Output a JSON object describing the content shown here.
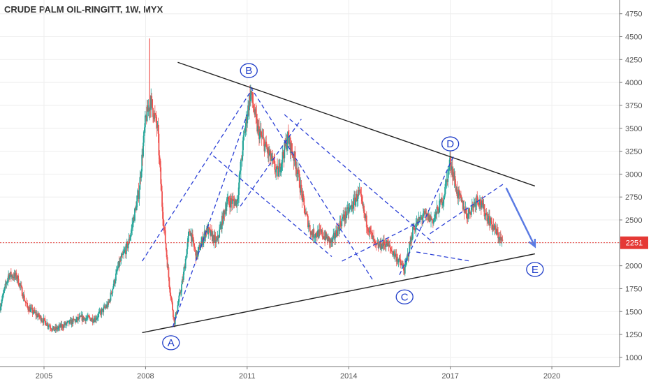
{
  "chart_data": {
    "type": "candlestick",
    "title": "CRUDE PALM OIL-RINGITT, 1W, MYX",
    "xlabel": "",
    "ylabel": "",
    "x_range": [
      2003.7,
      2022.0
    ],
    "ylim": [
      900,
      4900
    ],
    "x_ticks": [
      {
        "value": 2005,
        "label": "2005"
      },
      {
        "value": 2008,
        "label": "2008"
      },
      {
        "value": 2011,
        "label": "2011"
      },
      {
        "value": 2014,
        "label": "2014"
      },
      {
        "value": 2017,
        "label": "2017"
      },
      {
        "value": 2020,
        "label": "2020"
      }
    ],
    "y_ticks": [
      {
        "value": 1000,
        "label": "1000"
      },
      {
        "value": 1250,
        "label": "1250"
      },
      {
        "value": 1500,
        "label": "1500"
      },
      {
        "value": 1750,
        "label": "1750"
      },
      {
        "value": 2000,
        "label": "2000"
      },
      {
        "value": 2250,
        "label": "2250"
      },
      {
        "value": 2500,
        "label": "2500"
      },
      {
        "value": 2750,
        "label": "2750"
      },
      {
        "value": 3000,
        "label": "3000"
      },
      {
        "value": 3250,
        "label": "3250"
      },
      {
        "value": 3500,
        "label": "3500"
      },
      {
        "value": 3750,
        "label": "3750"
      },
      {
        "value": 4000,
        "label": "4000"
      },
      {
        "value": 4250,
        "label": "4250"
      },
      {
        "value": 4500,
        "label": "4500"
      },
      {
        "value": 4750,
        "label": "4750"
      }
    ],
    "grid": true,
    "last_price": {
      "value": 2251,
      "label": "2251"
    },
    "price_path": [
      [
        2003.7,
        1550
      ],
      [
        2003.95,
        1900
      ],
      [
        2004.2,
        1880
      ],
      [
        2004.5,
        1550
      ],
      [
        2004.9,
        1430
      ],
      [
        2005.3,
        1300
      ],
      [
        2005.7,
        1370
      ],
      [
        2006.1,
        1430
      ],
      [
        2006.5,
        1420
      ],
      [
        2006.9,
        1580
      ],
      [
        2007.2,
        2000
      ],
      [
        2007.5,
        2250
      ],
      [
        2007.8,
        2800
      ],
      [
        2008.0,
        3600
      ],
      [
        2008.15,
        3800
      ],
      [
        2008.35,
        3500
      ],
      [
        2008.5,
        2600
      ],
      [
        2008.7,
        1800
      ],
      [
        2008.85,
        1380
      ],
      [
        2009.1,
        1850
      ],
      [
        2009.3,
        2400
      ],
      [
        2009.5,
        2100
      ],
      [
        2009.8,
        2400
      ],
      [
        2010.1,
        2250
      ],
      [
        2010.4,
        2700
      ],
      [
        2010.7,
        2700
      ],
      [
        2010.9,
        3400
      ],
      [
        2011.1,
        3900
      ],
      [
        2011.3,
        3500
      ],
      [
        2011.6,
        3250
      ],
      [
        2011.9,
        3000
      ],
      [
        2012.2,
        3400
      ],
      [
        2012.45,
        3100
      ],
      [
        2012.7,
        2600
      ],
      [
        2012.9,
        2350
      ],
      [
        2013.2,
        2350
      ],
      [
        2013.5,
        2250
      ],
      [
        2013.8,
        2500
      ],
      [
        2014.1,
        2650
      ],
      [
        2014.3,
        2800
      ],
      [
        2014.5,
        2500
      ],
      [
        2014.8,
        2200
      ],
      [
        2015.1,
        2250
      ],
      [
        2015.4,
        2100
      ],
      [
        2015.65,
        1950
      ],
      [
        2015.9,
        2400
      ],
      [
        2016.2,
        2550
      ],
      [
        2016.5,
        2500
      ],
      [
        2016.8,
        2750
      ],
      [
        2017.0,
        3150
      ],
      [
        2017.2,
        2800
      ],
      [
        2017.5,
        2550
      ],
      [
        2017.8,
        2750
      ],
      [
        2018.0,
        2600
      ],
      [
        2018.3,
        2400
      ],
      [
        2018.55,
        2251
      ]
    ],
    "annotations": {
      "wave_labels": [
        {
          "label": "A",
          "x": 2008.75,
          "y": 1160
        },
        {
          "label": "B",
          "x": 2011.05,
          "y": 4130
        },
        {
          "label": "C",
          "x": 2015.65,
          "y": 1660
        },
        {
          "label": "D",
          "x": 2017.0,
          "y": 3330
        },
        {
          "label": "E",
          "x": 2019.5,
          "y": 1960
        }
      ],
      "trendlines": [
        {
          "style": "solid",
          "from": [
            2007.9,
            1270
          ],
          "to": [
            2019.5,
            2130
          ]
        },
        {
          "style": "solid",
          "from": [
            2008.95,
            4220
          ],
          "to": [
            2019.5,
            2870
          ]
        }
      ],
      "dashed_lines": [
        {
          "from": [
            2007.9,
            2050
          ],
          "to": [
            2011.1,
            3900
          ]
        },
        {
          "from": [
            2008.8,
            1330
          ],
          "to": [
            2011.0,
            3650
          ]
        },
        {
          "from": [
            2011.1,
            3950
          ],
          "to": [
            2014.7,
            1850
          ]
        },
        {
          "from": [
            2010.0,
            3200
          ],
          "to": [
            2013.5,
            2100
          ]
        },
        {
          "from": [
            2010.8,
            2650
          ],
          "to": [
            2012.6,
            3600
          ]
        },
        {
          "from": [
            2012.1,
            3650
          ],
          "to": [
            2016.5,
            2250
          ]
        },
        {
          "from": [
            2013.8,
            2050
          ],
          "to": [
            2016.2,
            2500
          ]
        },
        {
          "from": [
            2015.5,
            1900
          ],
          "to": [
            2017.1,
            3200
          ]
        },
        {
          "from": [
            2016.0,
            2150
          ],
          "to": [
            2017.6,
            2050
          ]
        },
        {
          "from": [
            2016.4,
            2350
          ],
          "to": [
            2018.6,
            2900
          ]
        }
      ],
      "forecast_arrow": {
        "from": [
          2018.65,
          2850
        ],
        "to": [
          2019.5,
          2210
        ]
      },
      "current_price_line": 2251
    },
    "colors": {
      "up": "#26a69a",
      "down": "#ef5350",
      "trendline": "#222222",
      "dashed": "#2a3fd6",
      "arrow": "#5b7be3",
      "label": "#1e3cc8",
      "price_line": "#e53935",
      "grid": "#eeeeee"
    }
  }
}
